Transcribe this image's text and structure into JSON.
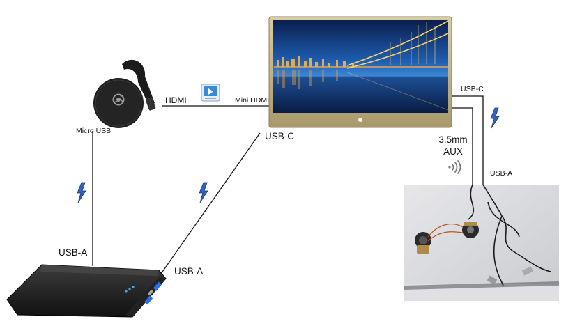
{
  "labels": {
    "hdmi": "HDMI",
    "mini_hdmi": "Mini HDMI",
    "micro_usb": "Micro USB",
    "usb_c_monitor_bottom": "USB-C",
    "usb_c_monitor_right": "USB-C",
    "aux_line1": "3.5mm",
    "aux_line2": "AUX",
    "usb_a_speaker": "USB-A",
    "usb_a_chromecast": "USB-A",
    "usb_a_powerbank": "USB-A"
  },
  "icons": {
    "power": "lightning-bolt-icon",
    "video": "video-play-icon",
    "audio": "sound-waves-icon"
  },
  "colors": {
    "bolt": "#2f63c6",
    "bolt_outline": "#16357a",
    "wire": "#111111",
    "monitor_frame": "#b9a877",
    "powerbank_led": "#3fa7ff",
    "powerbank_port": "#2a6fe8"
  }
}
